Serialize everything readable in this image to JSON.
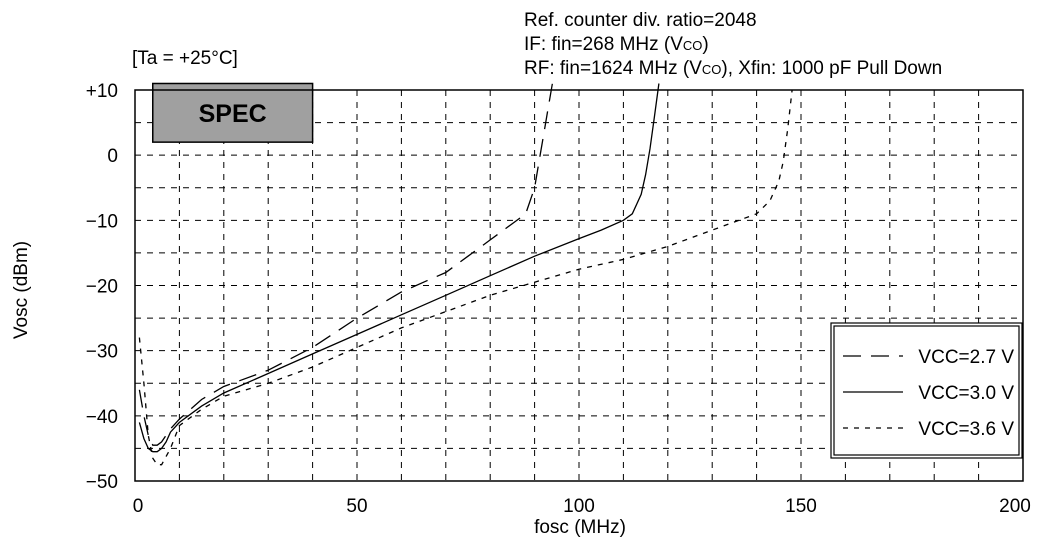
{
  "header": {
    "ambient": "[Ta = +25°C]",
    "ratio": "Ref. counter div. ratio=2048",
    "if_prefix": "IF: fin=268 MHz (V",
    "if_sub": "CO",
    "if_suffix": ")",
    "rf_prefix": "RF: fin=1624 MHz (V",
    "rf_sub": "CO",
    "rf_suffix": "), Xfin: 1000 pF Pull Down"
  },
  "spec_box": {
    "label": "SPEC",
    "x_range": [
      4,
      40
    ],
    "y_range": [
      2,
      11
    ],
    "color": "#a0a0a0"
  },
  "chart_data": {
    "type": "line",
    "xlabel": "fosc (MHz)",
    "ylabel": "Vosc (dBm)",
    "xlim": [
      0,
      200
    ],
    "ylim": [
      -50,
      10
    ],
    "x_ticks": [
      0,
      50,
      100,
      150,
      200
    ],
    "x_tick_labels": [
      "0",
      "50",
      "100",
      "150",
      "200"
    ],
    "y_ticks": [
      10,
      0,
      -10,
      -20,
      -30,
      -40,
      -50
    ],
    "y_tick_labels": [
      "+10",
      "0",
      "−10",
      "−20",
      "−30",
      "−40",
      "−50"
    ],
    "grid": true,
    "legend_position": "bottom-right",
    "series": [
      {
        "name": "VCC=2.7 V",
        "dash": "18,10",
        "x": [
          1,
          2,
          3,
          4,
          5,
          6,
          8,
          10,
          15,
          20,
          30,
          40,
          50,
          60,
          65,
          70,
          75,
          80,
          85,
          88,
          90,
          91,
          92,
          93,
          94
        ],
        "y": [
          -36,
          -40,
          -43,
          -44.5,
          -44.5,
          -44,
          -42,
          -40.5,
          -37.5,
          -35.5,
          -33,
          -29.5,
          -25,
          -21,
          -19.5,
          -18,
          -15.5,
          -13,
          -10.5,
          -9,
          -5,
          -1,
          3,
          7,
          11
        ]
      },
      {
        "name": "VCC=3.0 V",
        "dash": "",
        "x": [
          1,
          2,
          3,
          4,
          5,
          6,
          7,
          8,
          10,
          15,
          20,
          30,
          40,
          50,
          60,
          70,
          80,
          90,
          100,
          105,
          110,
          112,
          114,
          115,
          116,
          117,
          118
        ],
        "y": [
          -41,
          -43.5,
          -45,
          -45.5,
          -45.5,
          -45,
          -44,
          -42.5,
          -41,
          -38.5,
          -36.5,
          -33.5,
          -30.5,
          -27.5,
          -24.5,
          -21.5,
          -18.5,
          -15.5,
          -12.8,
          -11.5,
          -10,
          -9,
          -6,
          -3,
          1,
          6,
          11
        ]
      },
      {
        "name": "VCC=3.6 V",
        "dash": "5,6",
        "x": [
          1,
          2,
          3,
          4,
          5,
          6,
          8,
          10,
          15,
          20,
          30,
          40,
          50,
          60,
          70,
          80,
          90,
          100,
          110,
          120,
          130,
          140,
          143,
          145,
          146,
          147,
          148
        ],
        "y": [
          -28,
          -35,
          -43,
          -46.5,
          -47.5,
          -47.5,
          -45,
          -41.5,
          -39,
          -37,
          -35,
          -32.5,
          -29.5,
          -26.5,
          -24,
          -21.5,
          -19.5,
          -17.5,
          -16,
          -14,
          -11.5,
          -9,
          -7,
          -4,
          -1,
          4,
          10
        ]
      }
    ]
  }
}
